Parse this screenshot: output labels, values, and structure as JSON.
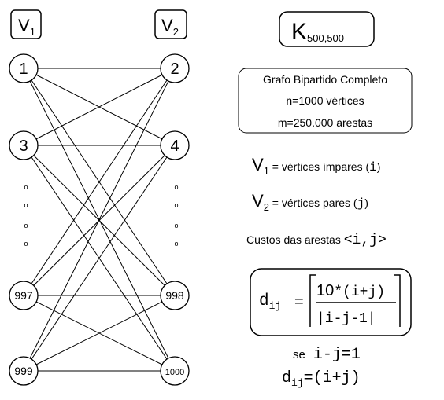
{
  "headers": {
    "v1_main": "V",
    "v1_sub": "1",
    "v2_main": "V",
    "v2_sub": "2"
  },
  "graph": {
    "title_main": "K",
    "title_sub": "500,500",
    "left_nodes": [
      "1",
      "3",
      "997",
      "999"
    ],
    "right_nodes": [
      "2",
      "4",
      "998",
      "1000"
    ],
    "dots": [
      "o",
      "o",
      "o",
      "o"
    ],
    "edges": [
      [
        "1",
        "2"
      ],
      [
        "1",
        "4"
      ],
      [
        "1",
        "998"
      ],
      [
        "1",
        "1000"
      ],
      [
        "3",
        "2"
      ],
      [
        "3",
        "4"
      ],
      [
        "3",
        "998"
      ],
      [
        "3",
        "1000"
      ],
      [
        "997",
        "2"
      ],
      [
        "997",
        "4"
      ],
      [
        "997",
        "998"
      ],
      [
        "997",
        "1000"
      ],
      [
        "999",
        "2"
      ],
      [
        "999",
        "4"
      ],
      [
        "999",
        "998"
      ],
      [
        "999",
        "1000"
      ]
    ]
  },
  "info_box": {
    "line1": "Grafo Bipartido Completo",
    "line2": "n=1000 vértices",
    "line3": "m=250.000 arestas"
  },
  "definitions": {
    "v1_main": "V",
    "v1_sub": "1",
    "v1_text": " = vértices ímpares (",
    "v1_var": "i",
    "v1_close": ")",
    "v2_main": "V",
    "v2_sub": "2",
    "v2_text": " = vértices pares (",
    "v2_var": "j",
    "v2_close": ")",
    "costs_text": "Custos das arestas ",
    "costs_edge": "<i,j>"
  },
  "formula": {
    "lhs_main": "d",
    "lhs_sub": "ij",
    "equals": "=",
    "numerator_num": "10",
    "numerator_rest": "*(i+j)",
    "denominator": "|i-j-1|"
  },
  "special_case": {
    "se_label": "se",
    "condition": "i-j=1",
    "lhs_main": "d",
    "lhs_sub": "ij",
    "rhs": "=(i+j)"
  }
}
